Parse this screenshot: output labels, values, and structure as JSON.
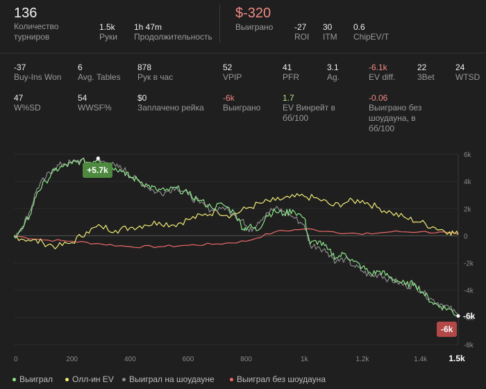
{
  "summary": {
    "tournaments": {
      "value": "136",
      "label": "Количество турниров"
    },
    "hands": {
      "value": "1.5k",
      "label": "Руки"
    },
    "duration": {
      "value": "1h 47m",
      "label": "Продолжительность"
    },
    "won": {
      "value": "$-320",
      "label": "Выиграно"
    },
    "roi": {
      "value": "-27",
      "label": "ROI"
    },
    "itm": {
      "value": "30",
      "label": "ITM"
    },
    "chipev": {
      "value": "0.6",
      "label": "ChipEV/T"
    }
  },
  "stats_row1": [
    {
      "value": "-37",
      "label": "Buy-Ins Won"
    },
    {
      "value": "6",
      "label": "Avg. Tables"
    },
    {
      "value": "878",
      "label": "Рук в час"
    },
    {
      "value": "52",
      "label": "VPIP"
    },
    {
      "value": "41",
      "label": "PFR"
    },
    {
      "value": "3.1",
      "label": "Ag."
    },
    {
      "value": "-6.1k",
      "label": "EV diff."
    },
    {
      "value": "22",
      "label": "3Bet"
    },
    {
      "value": "24",
      "label": "WTSD"
    }
  ],
  "stats_row2": [
    {
      "value": "47",
      "label": "W%SD"
    },
    {
      "value": "54",
      "label": "WWSF%"
    },
    {
      "value": "$0",
      "label": "Заплачено рейка"
    },
    {
      "value": "-6k",
      "label": "Выиграно"
    },
    {
      "value": "1.7",
      "label_lines": [
        "EV Винрейт в",
        "бб/100"
      ]
    },
    {
      "value": "-0.06",
      "label_lines": [
        "Выиграно без",
        "шоудауна, в",
        "бб/100"
      ]
    }
  ],
  "chart_data": {
    "type": "line",
    "x_ticks": [
      "0",
      "200",
      "400",
      "600",
      "800",
      "1k",
      "1.2k",
      "1.4k",
      "1.5k"
    ],
    "x_tick_values": [
      0,
      200,
      400,
      600,
      800,
      1000,
      1200,
      1400,
      1530
    ],
    "y_ticks": [
      "6k",
      "4k",
      "2k",
      "0",
      "-2k",
      "-4k",
      "-6k",
      "-8k"
    ],
    "y_tick_values": [
      6000,
      4000,
      2000,
      0,
      -2000,
      -4000,
      -6000,
      -8000
    ],
    "xlim": [
      0,
      1530
    ],
    "ylim": [
      -8000,
      6000
    ],
    "series": [
      {
        "name": "Выиграл",
        "color": "#8ee68a",
        "x": [
          0,
          30,
          55,
          80,
          110,
          140,
          170,
          200,
          230,
          260,
          290,
          320,
          350,
          380,
          400,
          430,
          460,
          490,
          520,
          560,
          600,
          640,
          680,
          720,
          760,
          790,
          810,
          840,
          870,
          900,
          930,
          960,
          1000,
          1020,
          1050,
          1080,
          1110,
          1140,
          1170,
          1200,
          1230,
          1260,
          1290,
          1320,
          1350,
          1380,
          1410,
          1440,
          1470,
          1500,
          1530
        ],
        "y": [
          0,
          500,
          1500,
          3200,
          4000,
          4800,
          5100,
          5300,
          5500,
          5400,
          5700,
          5300,
          5000,
          4700,
          4300,
          4100,
          3700,
          3400,
          3300,
          3500,
          3100,
          2600,
          2100,
          2300,
          1700,
          500,
          700,
          400,
          1500,
          1800,
          1600,
          1900,
          1300,
          -600,
          -400,
          -1000,
          -1600,
          -1300,
          -1900,
          -2300,
          -2800,
          -2600,
          -3000,
          -3300,
          -3600,
          -3500,
          -4200,
          -4900,
          -5200,
          -5400,
          -5900
        ]
      },
      {
        "name": "Олл-ин EV",
        "color": "#f3ee77",
        "x": [
          0,
          50,
          100,
          150,
          200,
          250,
          300,
          350,
          400,
          450,
          500,
          550,
          600,
          650,
          700,
          750,
          800,
          850,
          900,
          950,
          1000,
          1050,
          1100,
          1150,
          1200,
          1250,
          1300,
          1350,
          1400,
          1450,
          1500,
          1530
        ],
        "y": [
          0,
          -300,
          -500,
          -800,
          -500,
          300,
          700,
          400,
          600,
          800,
          1000,
          800,
          1200,
          1500,
          1800,
          1500,
          2000,
          2400,
          2600,
          2800,
          2900,
          2700,
          2200,
          2500,
          2600,
          2100,
          1700,
          1300,
          1000,
          600,
          300,
          100
        ]
      },
      {
        "name": "Выиграл на шоудауне",
        "color": "#8c8c8c",
        "x": [
          0,
          30,
          55,
          80,
          110,
          140,
          170,
          200,
          230,
          260,
          290,
          320,
          350,
          380,
          400,
          430,
          460,
          490,
          520,
          560,
          600,
          640,
          680,
          720,
          760,
          790,
          810,
          840,
          870,
          900,
          930,
          960,
          1000,
          1020,
          1050,
          1080,
          1110,
          1140,
          1170,
          1200,
          1230,
          1260,
          1290,
          1320,
          1350,
          1380,
          1410,
          1440,
          1470,
          1500,
          1530
        ],
        "y": [
          0,
          700,
          1800,
          3500,
          4300,
          5000,
          5300,
          5400,
          5600,
          5200,
          5500,
          5400,
          5100,
          4900,
          4400,
          4000,
          3600,
          3200,
          3200,
          3600,
          3000,
          2400,
          1900,
          2100,
          1500,
          1200,
          300,
          1000,
          1700,
          2000,
          1800,
          1400,
          800,
          -700,
          -800,
          -1200,
          -1900,
          -1700,
          -2200,
          -2600,
          -3000,
          -2800,
          -3200,
          -3400,
          -3700,
          -3600,
          -4200,
          -4700,
          -5000,
          -5300,
          -5900
        ]
      },
      {
        "name": "Выиграл без шоудауна",
        "color": "#ef6a6a",
        "x": [
          0,
          100,
          200,
          300,
          400,
          500,
          600,
          700,
          800,
          900,
          1000,
          1100,
          1200,
          1300,
          1400,
          1500,
          1530
        ],
        "y": [
          0,
          -300,
          -400,
          -600,
          -800,
          -800,
          -700,
          -600,
          -400,
          300,
          500,
          300,
          100,
          300,
          300,
          200,
          100
        ]
      }
    ],
    "peak_label": "+5.7k",
    "end_label": "-6k",
    "current_value": "-6k",
    "current_x_label": "1.5k"
  }
}
